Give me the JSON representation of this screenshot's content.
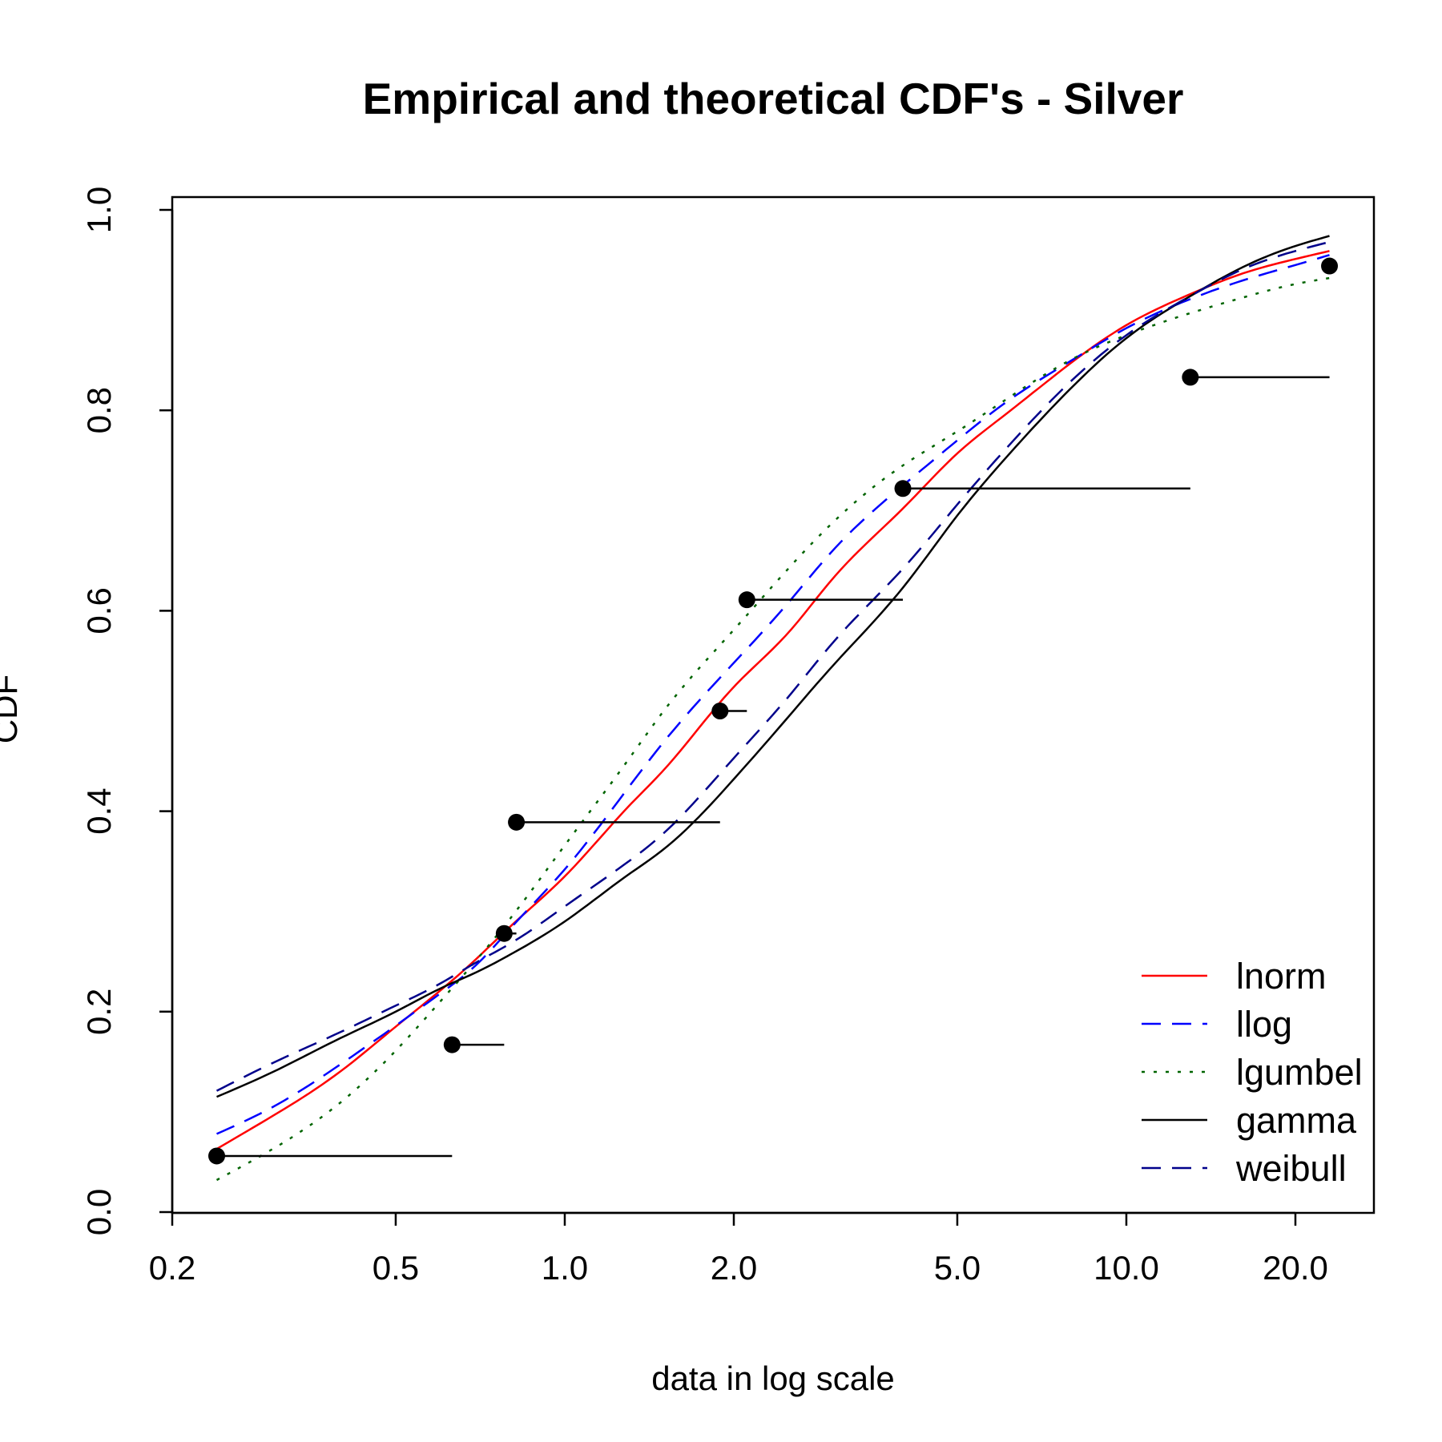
{
  "chart_data": {
    "type": "line",
    "title": "Empirical and theoretical CDF's - Silver",
    "xlabel": "data in log scale",
    "ylabel": "CDF",
    "x_scale": "log",
    "xlim": [
      0.2,
      30
    ],
    "ylim": [
      0.0,
      1.0
    ],
    "x_ticks": [
      {
        "value": 0.2,
        "label": "0.2"
      },
      {
        "value": 0.5,
        "label": "0.5"
      },
      {
        "value": 1.0,
        "label": "1.0"
      },
      {
        "value": 2.0,
        "label": "2.0"
      },
      {
        "value": 5.0,
        "label": "5.0"
      },
      {
        "value": 10.0,
        "label": "10.0"
      },
      {
        "value": 20.0,
        "label": "20.0"
      }
    ],
    "y_ticks": [
      {
        "value": 0.0,
        "label": "0.0"
      },
      {
        "value": 0.2,
        "label": "0.2"
      },
      {
        "value": 0.4,
        "label": "0.4"
      },
      {
        "value": 0.6,
        "label": "0.6"
      },
      {
        "value": 0.8,
        "label": "0.8"
      },
      {
        "value": 1.0,
        "label": "1.0"
      }
    ],
    "grid": false,
    "legend_position": "bottom-right",
    "empirical": [
      {
        "x": 0.24,
        "y": 0.056,
        "x_end": 0.63
      },
      {
        "x": 0.63,
        "y": 0.167,
        "x_end": 0.78
      },
      {
        "x": 0.78,
        "y": 0.278,
        "x_end": 0.82
      },
      {
        "x": 0.82,
        "y": 0.389,
        "x_end": 1.89
      },
      {
        "x": 1.89,
        "y": 0.5,
        "x_end": 2.11
      },
      {
        "x": 2.11,
        "y": 0.611,
        "x_end": 4.0
      },
      {
        "x": 4.0,
        "y": 0.722,
        "x_end": 13.0
      },
      {
        "x": 13.0,
        "y": 0.833,
        "x_end": 23.0
      },
      {
        "x": 23.0,
        "y": 0.944,
        "x_end": 23.0
      }
    ],
    "series": [
      {
        "name": "lnorm",
        "color": "#ff0000",
        "dash": "solid",
        "x": [
          0.24,
          0.3,
          0.4,
          0.5,
          0.6,
          0.7,
          0.8,
          1.0,
          1.3,
          1.5,
          2.0,
          2.5,
          3.0,
          4.0,
          5.0,
          6.0,
          8.0,
          10.0,
          13.0,
          16.0,
          20.0,
          23.0
        ],
        "y": [
          0.063,
          0.095,
          0.141,
          0.185,
          0.221,
          0.254,
          0.285,
          0.335,
          0.405,
          0.441,
          0.524,
          0.578,
          0.632,
          0.702,
          0.757,
          0.793,
          0.848,
          0.885,
          0.916,
          0.936,
          0.951,
          0.959
        ]
      },
      {
        "name": "llog",
        "color": "#0000ff",
        "dash": "dashed",
        "x": [
          0.24,
          0.3,
          0.4,
          0.5,
          0.6,
          0.7,
          0.8,
          1.0,
          1.3,
          1.5,
          2.0,
          2.5,
          3.0,
          4.0,
          5.0,
          6.0,
          8.0,
          10.0,
          13.0,
          16.0,
          20.0,
          23.0
        ],
        "y": [
          0.078,
          0.104,
          0.148,
          0.186,
          0.218,
          0.248,
          0.283,
          0.342,
          0.424,
          0.469,
          0.548,
          0.608,
          0.66,
          0.725,
          0.77,
          0.805,
          0.85,
          0.882,
          0.911,
          0.929,
          0.945,
          0.955
        ]
      },
      {
        "name": "lgumbel",
        "color": "#006400",
        "dash": "dotted",
        "x": [
          0.24,
          0.3,
          0.4,
          0.5,
          0.6,
          0.7,
          0.8,
          1.0,
          1.3,
          1.5,
          2.0,
          2.5,
          3.0,
          4.0,
          5.0,
          6.0,
          8.0,
          10.0,
          13.0,
          16.0,
          20.0,
          23.0
        ],
        "y": [
          0.032,
          0.062,
          0.11,
          0.161,
          0.21,
          0.253,
          0.293,
          0.366,
          0.452,
          0.5,
          0.581,
          0.642,
          0.688,
          0.745,
          0.779,
          0.808,
          0.851,
          0.875,
          0.897,
          0.912,
          0.926,
          0.932
        ]
      },
      {
        "name": "gamma",
        "color": "#000000",
        "dash": "solid",
        "x": [
          0.24,
          0.3,
          0.4,
          0.5,
          0.6,
          0.7,
          0.8,
          1.0,
          1.3,
          1.5,
          2.0,
          2.5,
          3.0,
          4.0,
          5.0,
          6.0,
          8.0,
          10.0,
          13.0,
          16.0,
          20.0,
          23.0
        ],
        "y": [
          0.115,
          0.139,
          0.174,
          0.2,
          0.223,
          0.24,
          0.257,
          0.29,
          0.337,
          0.362,
          0.432,
          0.494,
          0.545,
          0.623,
          0.695,
          0.748,
          0.823,
          0.872,
          0.914,
          0.942,
          0.964,
          0.974
        ]
      },
      {
        "name": "weibull",
        "color": "#00008b",
        "dash": "dashed",
        "x": [
          0.24,
          0.3,
          0.4,
          0.5,
          0.6,
          0.7,
          0.8,
          1.0,
          1.3,
          1.5,
          2.0,
          2.5,
          3.0,
          4.0,
          5.0,
          6.0,
          8.0,
          10.0,
          13.0,
          16.0,
          20.0,
          23.0
        ],
        "y": [
          0.121,
          0.148,
          0.18,
          0.206,
          0.228,
          0.25,
          0.268,
          0.305,
          0.35,
          0.378,
          0.453,
          0.514,
          0.568,
          0.642,
          0.706,
          0.757,
          0.83,
          0.875,
          0.914,
          0.94,
          0.959,
          0.968
        ]
      }
    ]
  }
}
